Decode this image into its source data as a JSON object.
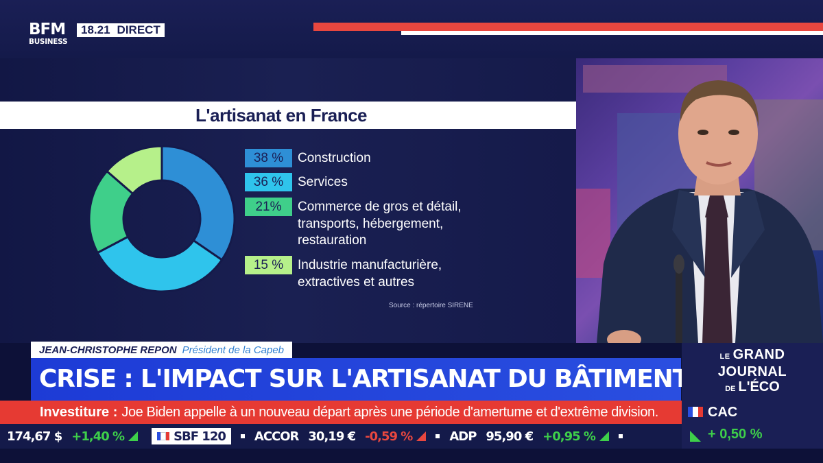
{
  "header": {
    "logo_top": "BFM",
    "logo_bottom": "BUSINESS",
    "time": "18.21",
    "live_label": "DIRECT"
  },
  "chart_data": {
    "type": "pie",
    "title": "L'artisanat en France",
    "source": "Source : répertoire SIRENE",
    "unit": "%",
    "slices": [
      {
        "label": "Construction",
        "value": 38,
        "value_label": "38 %",
        "color": "#2e8fd6"
      },
      {
        "label": "Services",
        "value": 36,
        "value_label": "36 %",
        "color": "#2fc4ec"
      },
      {
        "label": "Commerce de gros et détail, transports, hébergement, restauration",
        "label_lines": [
          "Commerce de gros et détail,",
          "transports, hébergement,",
          "restauration"
        ],
        "value": 21,
        "value_label": "21%",
        "color": "#3fcf8a"
      },
      {
        "label": "Industrie manufacturière, extractives et autres",
        "label_lines": [
          "Industrie manufacturière,",
          "extractives et autres"
        ],
        "value": 15,
        "value_label": "15 %",
        "color": "#b6f08a"
      }
    ]
  },
  "strap": {
    "name": "JEAN-CHRISTOPHE REPON",
    "role": "Président de la Capeb"
  },
  "headline": "CRISE : L'IMPACT SUR L'ARTISANAT DU BÂTIMENT",
  "show_logo": {
    "line1_small": "LE",
    "line1": "GRAND",
    "line2": "JOURNAL",
    "line3_small": "DE",
    "line3": "L'ÉCO"
  },
  "news": {
    "label": "Investiture :",
    "text": "Joe Biden appelle à un nouveau départ après une période d'amertume et d'extrême division."
  },
  "stocks": {
    "first_value": "174,67 $",
    "first_change": "+1,40 %",
    "sbf_label": "SBF 120",
    "items": [
      {
        "name": "ACCOR",
        "price": "30,19 €",
        "change": "-0,59 %",
        "direction": "down"
      },
      {
        "name": "ADP",
        "price": "95,90 €",
        "change": "+0,95 %",
        "direction": "up"
      }
    ]
  },
  "index": {
    "name": "CAC",
    "change": "+ 0,50 %"
  },
  "colors": {
    "brand_navy": "#1a1f55",
    "headline_blue": "#1d3bd6",
    "news_red": "#e63a33",
    "up_green": "#3ecf4a",
    "down_red": "#e8473f"
  }
}
